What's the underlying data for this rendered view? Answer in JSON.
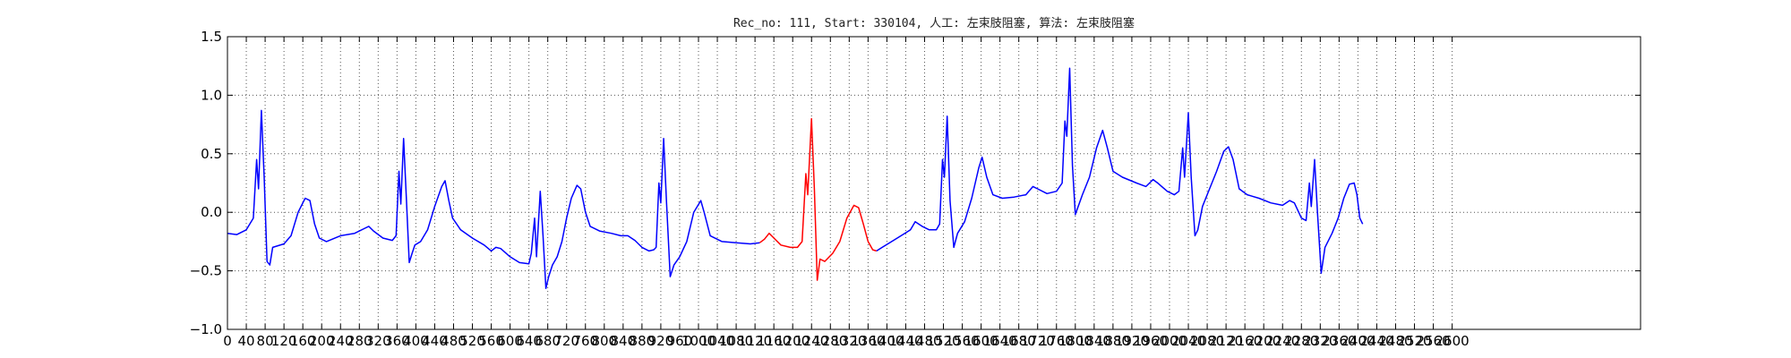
{
  "chart_data": {
    "type": "line",
    "title": "Rec_no: 111, Start: 330104, 人工: 左束肢阻塞, 算法: 左束肢阻塞",
    "xlabel": "",
    "ylabel": "",
    "xlim": [
      0,
      3000
    ],
    "ylim": [
      -1.0,
      1.5
    ],
    "grid": true,
    "y_ticks": [
      -1.0,
      -0.5,
      0.0,
      0.5,
      1.0,
      1.5
    ],
    "y_tick_labels": [
      "−1.0",
      "−0.5",
      "0.0",
      "0.5",
      "1.0",
      "1.5"
    ],
    "x_ticks": [
      0,
      40,
      80,
      120,
      160,
      200,
      240,
      280,
      320,
      360,
      400,
      440,
      480,
      520,
      560,
      600,
      640,
      680,
      720,
      760,
      800,
      840,
      880,
      920,
      960,
      1000,
      1040,
      1080,
      1120,
      1160,
      1200,
      1240,
      1280,
      1320,
      1360,
      1400,
      1440,
      1480,
      1520,
      1560,
      1600,
      1640,
      1680,
      1720,
      1760,
      1800,
      1840,
      1880,
      1920,
      1960,
      2000,
      2040,
      2080,
      2120,
      2160,
      2200,
      2240,
      2280,
      2320,
      2360,
      2400,
      2440,
      2480,
      2520,
      2560,
      2600
    ],
    "series": [
      {
        "color": "#0000ff",
        "points": [
          [
            0,
            -0.18
          ],
          [
            20,
            -0.19
          ],
          [
            40,
            -0.15
          ],
          [
            55,
            -0.05
          ],
          [
            62,
            0.45
          ],
          [
            66,
            0.2
          ],
          [
            72,
            0.87
          ],
          [
            78,
            0.3
          ],
          [
            84,
            -0.42
          ],
          [
            90,
            -0.45
          ],
          [
            96,
            -0.3
          ],
          [
            120,
            -0.27
          ],
          [
            135,
            -0.2
          ],
          [
            150,
            0.0
          ],
          [
            165,
            0.12
          ],
          [
            175,
            0.1
          ],
          [
            185,
            -0.1
          ],
          [
            195,
            -0.22
          ],
          [
            210,
            -0.25
          ],
          [
            240,
            -0.2
          ],
          [
            270,
            -0.18
          ],
          [
            290,
            -0.14
          ],
          [
            300,
            -0.12
          ],
          [
            310,
            -0.16
          ],
          [
            330,
            -0.22
          ],
          [
            350,
            -0.24
          ],
          [
            358,
            -0.2
          ],
          [
            364,
            0.35
          ],
          [
            368,
            0.07
          ],
          [
            374,
            0.63
          ],
          [
            380,
            0.1
          ],
          [
            386,
            -0.43
          ],
          [
            392,
            -0.35
          ],
          [
            398,
            -0.28
          ],
          [
            410,
            -0.25
          ],
          [
            425,
            -0.15
          ],
          [
            440,
            0.05
          ],
          [
            455,
            0.22
          ],
          [
            462,
            0.27
          ],
          [
            470,
            0.1
          ],
          [
            478,
            -0.05
          ],
          [
            495,
            -0.15
          ],
          [
            520,
            -0.22
          ],
          [
            545,
            -0.28
          ],
          [
            560,
            -0.33
          ],
          [
            570,
            -0.3
          ],
          [
            580,
            -0.31
          ],
          [
            600,
            -0.38
          ],
          [
            620,
            -0.43
          ],
          [
            640,
            -0.44
          ],
          [
            645,
            -0.35
          ],
          [
            652,
            -0.05
          ],
          [
            656,
            -0.38
          ],
          [
            664,
            0.18
          ],
          [
            670,
            -0.2
          ],
          [
            676,
            -0.65
          ],
          [
            682,
            -0.55
          ],
          [
            690,
            -0.45
          ],
          [
            700,
            -0.38
          ],
          [
            710,
            -0.25
          ],
          [
            720,
            -0.05
          ],
          [
            730,
            0.12
          ],
          [
            742,
            0.23
          ],
          [
            750,
            0.2
          ],
          [
            760,
            0.0
          ],
          [
            770,
            -0.12
          ],
          [
            790,
            -0.16
          ],
          [
            815,
            -0.18
          ],
          [
            835,
            -0.2
          ],
          [
            850,
            -0.2
          ],
          [
            865,
            -0.24
          ],
          [
            880,
            -0.3
          ],
          [
            895,
            -0.33
          ],
          [
            905,
            -0.32
          ],
          [
            910,
            -0.3
          ],
          [
            916,
            0.25
          ],
          [
            920,
            0.08
          ],
          [
            926,
            0.63
          ],
          [
            932,
            0.1
          ],
          [
            940,
            -0.55
          ],
          [
            948,
            -0.45
          ],
          [
            960,
            -0.38
          ],
          [
            975,
            -0.25
          ],
          [
            990,
            0.0
          ],
          [
            1005,
            0.1
          ],
          [
            1012,
            0.0
          ],
          [
            1025,
            -0.2
          ],
          [
            1050,
            -0.25
          ],
          [
            1080,
            -0.26
          ],
          [
            1110,
            -0.27
          ],
          [
            1130,
            -0.26
          ]
        ]
      },
      {
        "color": "#ff0000",
        "points": [
          [
            1130,
            -0.26
          ],
          [
            1140,
            -0.23
          ],
          [
            1150,
            -0.18
          ],
          [
            1160,
            -0.22
          ],
          [
            1175,
            -0.28
          ],
          [
            1195,
            -0.3
          ],
          [
            1210,
            -0.3
          ],
          [
            1220,
            -0.25
          ],
          [
            1228,
            0.33
          ],
          [
            1232,
            0.15
          ],
          [
            1240,
            0.8
          ],
          [
            1246,
            0.2
          ],
          [
            1252,
            -0.58
          ],
          [
            1258,
            -0.4
          ],
          [
            1268,
            -0.42
          ],
          [
            1285,
            -0.35
          ],
          [
            1300,
            -0.25
          ],
          [
            1315,
            -0.05
          ],
          [
            1330,
            0.06
          ],
          [
            1340,
            0.04
          ],
          [
            1350,
            -0.1
          ],
          [
            1360,
            -0.25
          ],
          [
            1370,
            -0.32
          ],
          [
            1378,
            -0.33
          ]
        ]
      },
      {
        "color": "#0000ff",
        "points": [
          [
            1378,
            -0.33
          ],
          [
            1390,
            -0.3
          ],
          [
            1410,
            -0.25
          ],
          [
            1430,
            -0.2
          ],
          [
            1450,
            -0.15
          ],
          [
            1460,
            -0.08
          ],
          [
            1475,
            -0.12
          ],
          [
            1490,
            -0.15
          ],
          [
            1505,
            -0.15
          ],
          [
            1512,
            -0.1
          ],
          [
            1518,
            0.45
          ],
          [
            1522,
            0.3
          ],
          [
            1528,
            0.82
          ],
          [
            1534,
            0.1
          ],
          [
            1542,
            -0.3
          ],
          [
            1550,
            -0.18
          ],
          [
            1565,
            -0.08
          ],
          [
            1580,
            0.12
          ],
          [
            1595,
            0.38
          ],
          [
            1602,
            0.47
          ],
          [
            1612,
            0.3
          ],
          [
            1625,
            0.15
          ],
          [
            1645,
            0.12
          ],
          [
            1670,
            0.13
          ],
          [
            1695,
            0.15
          ],
          [
            1710,
            0.22
          ],
          [
            1720,
            0.2
          ],
          [
            1740,
            0.16
          ],
          [
            1760,
            0.18
          ],
          [
            1772,
            0.25
          ],
          [
            1778,
            0.78
          ],
          [
            1782,
            0.65
          ],
          [
            1788,
            1.23
          ],
          [
            1794,
            0.4
          ],
          [
            1800,
            -0.02
          ],
          [
            1806,
            0.05
          ],
          [
            1815,
            0.15
          ],
          [
            1830,
            0.3
          ],
          [
            1845,
            0.55
          ],
          [
            1858,
            0.7
          ],
          [
            1868,
            0.55
          ],
          [
            1880,
            0.35
          ],
          [
            1900,
            0.3
          ],
          [
            1930,
            0.25
          ],
          [
            1950,
            0.22
          ],
          [
            1965,
            0.28
          ],
          [
            1975,
            0.25
          ],
          [
            1995,
            0.18
          ],
          [
            2010,
            0.15
          ],
          [
            2020,
            0.18
          ],
          [
            2028,
            0.55
          ],
          [
            2032,
            0.3
          ],
          [
            2040,
            0.85
          ],
          [
            2046,
            0.3
          ],
          [
            2054,
            -0.2
          ],
          [
            2060,
            -0.15
          ],
          [
            2070,
            0.05
          ],
          [
            2085,
            0.2
          ],
          [
            2100,
            0.35
          ],
          [
            2115,
            0.52
          ],
          [
            2125,
            0.56
          ],
          [
            2135,
            0.45
          ],
          [
            2148,
            0.2
          ],
          [
            2165,
            0.15
          ],
          [
            2190,
            0.12
          ],
          [
            2215,
            0.08
          ],
          [
            2240,
            0.06
          ],
          [
            2255,
            0.1
          ],
          [
            2265,
            0.08
          ],
          [
            2280,
            -0.05
          ],
          [
            2290,
            -0.07
          ],
          [
            2297,
            0.25
          ],
          [
            2301,
            0.05
          ],
          [
            2308,
            0.45
          ],
          [
            2314,
            0.0
          ],
          [
            2322,
            -0.52
          ],
          [
            2330,
            -0.3
          ],
          [
            2345,
            -0.18
          ],
          [
            2358,
            -0.05
          ],
          [
            2370,
            0.12
          ],
          [
            2382,
            0.24
          ],
          [
            2392,
            0.25
          ],
          [
            2398,
            0.15
          ],
          [
            2404,
            -0.05
          ],
          [
            2410,
            -0.1
          ]
        ]
      }
    ]
  }
}
